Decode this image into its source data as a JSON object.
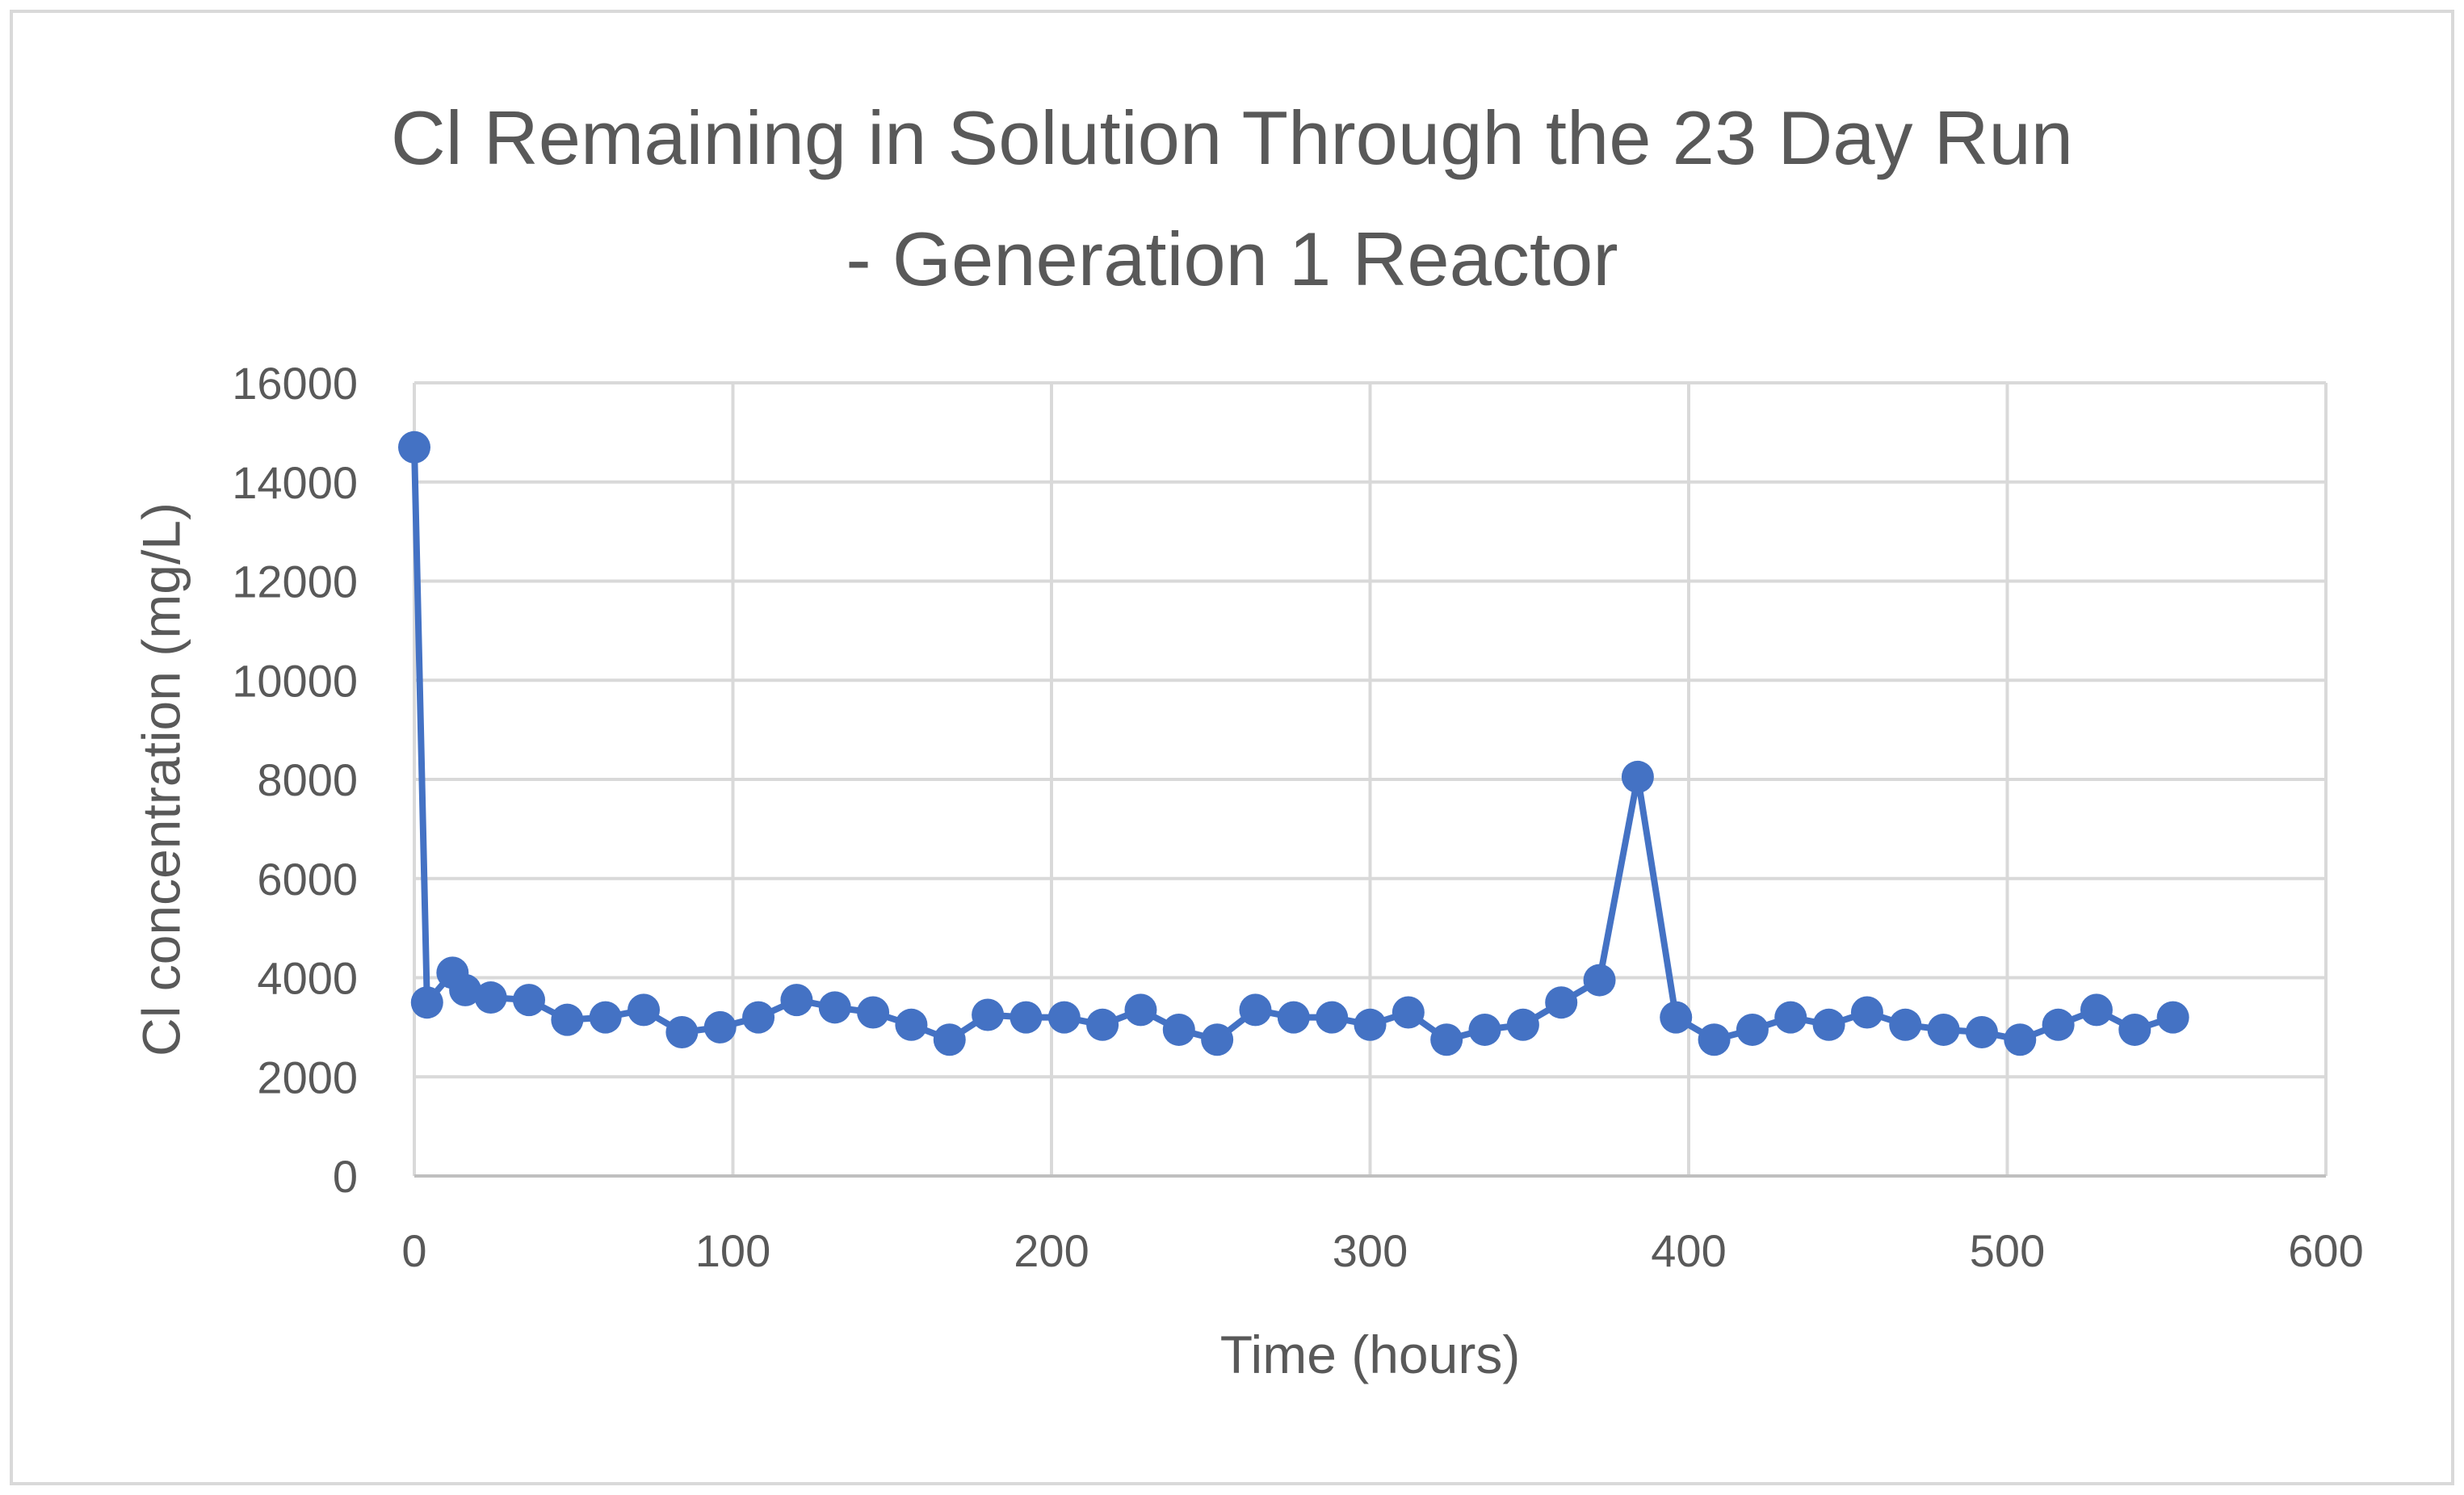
{
  "chart_data": {
    "type": "scatter",
    "title": "Cl Remaining in Solution Through the 23 Day Run\n- Generation 1 Reactor",
    "xlabel": "Time (hours)",
    "ylabel": "Cl concentration (mg/L)",
    "xlim": [
      0,
      600
    ],
    "ylim": [
      0,
      16000
    ],
    "xticks": [
      0,
      100,
      200,
      300,
      400,
      500,
      600
    ],
    "yticks": [
      0,
      2000,
      4000,
      6000,
      8000,
      10000,
      12000,
      14000,
      16000
    ],
    "grid": true,
    "legend": "none",
    "series_color": "#4472c4",
    "series": [
      {
        "style": "line-with-markers",
        "x": [
          0,
          4,
          12,
          16,
          24,
          36,
          48,
          60,
          72,
          84,
          96,
          108,
          120,
          132,
          144,
          156,
          168,
          180,
          192,
          204,
          216,
          228,
          240,
          252,
          264,
          276,
          288,
          300,
          312,
          324,
          336,
          348,
          360,
          372,
          384,
          396,
          408,
          420,
          432,
          444,
          456,
          468,
          480,
          492,
          504,
          516,
          528,
          540,
          552
        ],
        "y": [
          14700,
          3500,
          4100,
          3750,
          3600,
          3550,
          3150,
          3200,
          3350,
          2900,
          3000,
          3200,
          3550,
          3400,
          3300,
          3050,
          2750,
          3250,
          3200,
          3200,
          3050,
          3350,
          2950,
          2750,
          3350,
          3200,
          3200,
          3050,
          3300,
          2750,
          2950,
          3050,
          3500,
          3950,
          8050,
          3200,
          2750,
          2950,
          3200,
          3050,
          3300,
          3050,
          2950,
          2900,
          2750,
          3050,
          3350,
          2950,
          3200
        ]
      }
    ]
  }
}
